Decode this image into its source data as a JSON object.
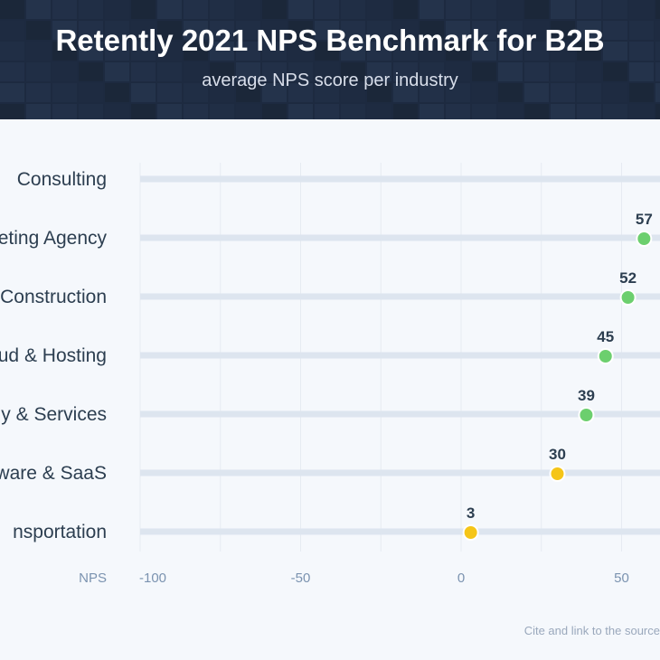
{
  "header": {
    "title": "Retently 2021 NPS Benchmark for B2B",
    "subtitle": "average NPS score per industry"
  },
  "footer": {
    "cite": "Cite and link to the source"
  },
  "colors": {
    "header_bg": "#1d2a40",
    "green_dot": "#6ccf6e",
    "yellow_dot": "#f5c518",
    "track": "#dde5ef",
    "axis_text": "#7b93b0",
    "label_text": "#2c3e50"
  },
  "chart_data": {
    "type": "scatter",
    "title": "Retently 2021 NPS Benchmark for B2B",
    "subtitle": "average NPS score per industry",
    "xlabel": "NPS",
    "ylabel": "",
    "xlim": [
      -100,
      100
    ],
    "x_ticks": [
      -100,
      -50,
      0,
      50
    ],
    "x_tick_labels": [
      "-100",
      "-50",
      "0",
      "50"
    ],
    "categories": [
      "Consulting",
      "Marketing Agency",
      "Construction",
      "Cloud & Hosting",
      "Technology & Services",
      "Software & SaaS",
      "Transportation"
    ],
    "category_labels_visible": [
      "Consulting",
      "eting Agency",
      "Construction",
      "ud & Hosting",
      "y & Services",
      "ware & SaaS",
      "nsportation"
    ],
    "values": [
      null,
      57,
      52,
      45,
      39,
      30,
      3
    ],
    "value_labels": [
      "",
      "57",
      "52",
      "45",
      "39",
      "30",
      "3"
    ],
    "point_colors": [
      "#6ccf6e",
      "#6ccf6e",
      "#6ccf6e",
      "#6ccf6e",
      "#6ccf6e",
      "#f5c518",
      "#f5c518"
    ],
    "grid": true,
    "legend": "none"
  }
}
